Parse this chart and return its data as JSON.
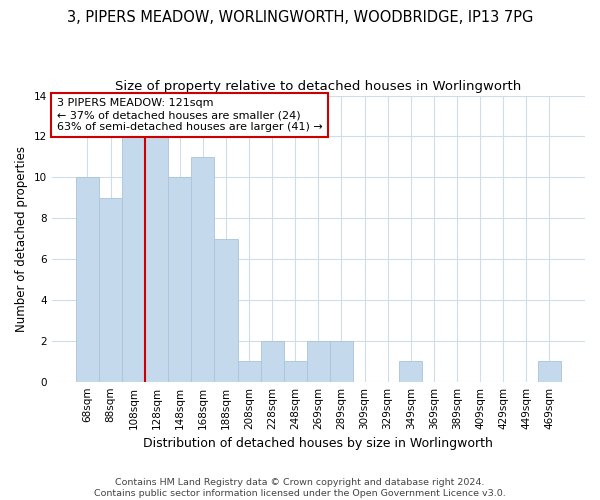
{
  "title": "3, PIPERS MEADOW, WORLINGWORTH, WOODBRIDGE, IP13 7PG",
  "subtitle": "Size of property relative to detached houses in Worlingworth",
  "xlabel": "Distribution of detached houses by size in Worlingworth",
  "ylabel": "Number of detached properties",
  "categories": [
    "68sqm",
    "88sqm",
    "108sqm",
    "128sqm",
    "148sqm",
    "168sqm",
    "188sqm",
    "208sqm",
    "228sqm",
    "248sqm",
    "269sqm",
    "289sqm",
    "309sqm",
    "329sqm",
    "349sqm",
    "369sqm",
    "389sqm",
    "409sqm",
    "429sqm",
    "449sqm",
    "469sqm"
  ],
  "values": [
    10,
    9,
    12,
    12,
    10,
    11,
    7,
    1,
    2,
    1,
    2,
    2,
    0,
    0,
    1,
    0,
    0,
    0,
    0,
    0,
    1
  ],
  "bar_color": "#c5d9ed",
  "bar_edge_color": "#aac4dc",
  "reference_line_color": "#cc0000",
  "annotation_text": "3 PIPERS MEADOW: 121sqm\n← 37% of detached houses are smaller (24)\n63% of semi-detached houses are larger (41) →",
  "annotation_box_color": "#cc0000",
  "ylim": [
    0,
    14
  ],
  "yticks": [
    0,
    2,
    4,
    6,
    8,
    10,
    12,
    14
  ],
  "background_color": "#ffffff",
  "fig_background_color": "#ffffff",
  "grid_color": "#d0dce8",
  "footer": "Contains HM Land Registry data © Crown copyright and database right 2024.\nContains public sector information licensed under the Open Government Licence v3.0.",
  "title_fontsize": 10.5,
  "subtitle_fontsize": 9.5,
  "xlabel_fontsize": 9,
  "ylabel_fontsize": 8.5,
  "tick_fontsize": 7.5,
  "annotation_fontsize": 8
}
